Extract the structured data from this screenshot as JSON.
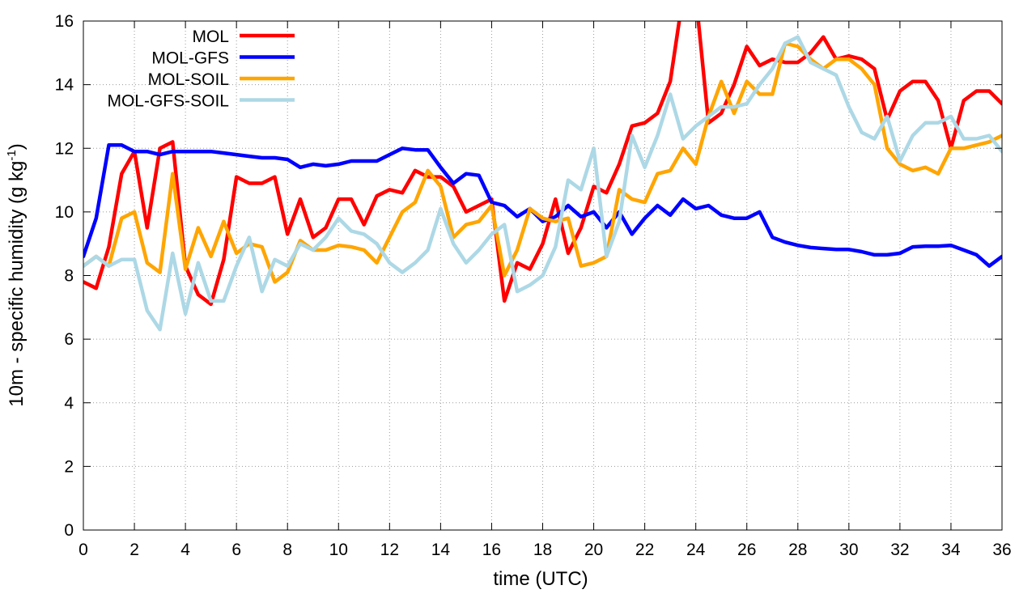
{
  "chart_data": {
    "type": "line",
    "xlabel": "time (UTC)",
    "ylabel_main": "10m - specific humidity (g kg",
    "ylabel_sup": "-1",
    "ylabel_tail": ")",
    "xlim": [
      0,
      36
    ],
    "ylim": [
      0,
      16
    ],
    "xticks": [
      "0",
      "2",
      "4",
      "6",
      "8",
      "10",
      "12",
      "14",
      "16",
      "18",
      "20",
      "22",
      "24",
      "26",
      "28",
      "30",
      "32",
      "34",
      "36"
    ],
    "yticks": [
      "0",
      "2",
      "4",
      "6",
      "8",
      "10",
      "12",
      "14",
      "16"
    ],
    "grid": true,
    "legend_position": "top-left",
    "x": [
      0,
      0.5,
      1,
      1.5,
      2,
      2.5,
      3,
      3.5,
      4,
      4.5,
      5,
      5.5,
      6,
      6.5,
      7,
      7.5,
      8,
      8.5,
      9,
      9.5,
      10,
      10.5,
      11,
      11.5,
      12,
      12.5,
      13,
      13.5,
      14,
      14.5,
      15,
      15.5,
      16,
      16.5,
      17,
      17.5,
      18,
      18.5,
      19,
      19.5,
      20,
      20.5,
      21,
      21.5,
      22,
      22.5,
      23,
      23.5,
      24,
      24.5,
      25,
      25.5,
      26,
      26.5,
      27,
      27.5,
      28,
      28.5,
      29,
      29.5,
      30,
      30.5,
      31,
      31.5,
      32,
      32.5,
      33,
      33.5,
      34,
      34.5,
      35,
      35.5,
      36
    ],
    "series": [
      {
        "name": "MOL",
        "color": "#ff0000",
        "values": [
          7.8,
          7.6,
          8.9,
          11.2,
          11.9,
          9.5,
          12.0,
          12.2,
          8.3,
          7.4,
          7.1,
          8.5,
          11.1,
          10.9,
          10.9,
          11.1,
          9.3,
          10.4,
          9.2,
          9.5,
          10.4,
          10.4,
          9.6,
          10.5,
          10.7,
          10.6,
          11.3,
          11.1,
          11.1,
          10.8,
          10.0,
          10.2,
          10.4,
          7.2,
          8.4,
          8.2,
          9.0,
          10.4,
          8.7,
          9.5,
          10.8,
          10.6,
          11.5,
          12.7,
          12.8,
          13.1,
          14.1,
          16.8,
          16.8,
          12.8,
          13.1,
          14.0,
          15.2,
          14.6,
          14.8,
          14.7,
          14.7,
          15.0,
          15.5,
          14.8,
          14.9,
          14.8,
          14.5,
          12.9,
          13.8,
          14.1,
          14.1,
          13.5,
          12.0,
          13.5,
          13.8,
          13.8,
          13.4
        ]
      },
      {
        "name": "MOL-GFS",
        "color": "#0000ff",
        "values": [
          8.6,
          9.8,
          12.1,
          12.1,
          11.9,
          11.9,
          11.8,
          11.9,
          11.9,
          11.9,
          11.9,
          11.85,
          11.8,
          11.75,
          11.7,
          11.7,
          11.65,
          11.4,
          11.5,
          11.45,
          11.5,
          11.6,
          11.6,
          11.6,
          11.8,
          12.0,
          11.95,
          11.95,
          11.4,
          10.9,
          11.2,
          11.15,
          10.3,
          10.2,
          9.85,
          10.1,
          9.7,
          9.85,
          10.2,
          9.85,
          10.0,
          9.5,
          10.0,
          9.3,
          9.8,
          10.2,
          9.9,
          10.4,
          10.1,
          10.2,
          9.9,
          9.8,
          9.8,
          10.0,
          9.2,
          9.05,
          8.95,
          8.88,
          8.85,
          8.82,
          8.82,
          8.75,
          8.65,
          8.65,
          8.7,
          8.9,
          8.92,
          8.92,
          8.95,
          8.8,
          8.65,
          8.3,
          8.6
        ]
      },
      {
        "name": "MOL-SOIL",
        "color": "#ffa500",
        "values": [
          8.3,
          8.6,
          8.3,
          9.8,
          10.0,
          8.4,
          8.1,
          11.2,
          8.2,
          9.5,
          8.6,
          9.7,
          8.7,
          9.0,
          8.9,
          7.8,
          8.1,
          9.1,
          8.8,
          8.8,
          8.95,
          8.9,
          8.8,
          8.4,
          9.2,
          10.0,
          10.3,
          11.3,
          10.8,
          9.2,
          9.6,
          9.7,
          10.2,
          8.0,
          8.8,
          10.1,
          9.8,
          9.7,
          9.8,
          8.3,
          8.4,
          8.6,
          10.7,
          10.4,
          10.3,
          11.2,
          11.3,
          12.0,
          11.5,
          13.0,
          14.1,
          13.1,
          14.1,
          13.7,
          13.7,
          15.3,
          15.2,
          14.8,
          14.5,
          14.8,
          14.8,
          14.5,
          14.0,
          12.0,
          11.5,
          11.3,
          11.4,
          11.2,
          12.0,
          12.0,
          12.1,
          12.2,
          12.4
        ]
      },
      {
        "name": "MOL-GFS-SOIL",
        "color": "#add8e6",
        "values": [
          8.3,
          8.6,
          8.3,
          8.5,
          8.5,
          6.9,
          6.3,
          8.7,
          6.8,
          8.4,
          7.2,
          7.2,
          8.3,
          9.2,
          7.5,
          8.5,
          8.3,
          9.0,
          8.8,
          9.2,
          9.8,
          9.4,
          9.3,
          9.0,
          8.4,
          8.1,
          8.4,
          8.8,
          10.1,
          9.0,
          8.4,
          8.8,
          9.3,
          9.6,
          7.5,
          7.7,
          8.0,
          8.9,
          11.0,
          10.7,
          12.0,
          8.6,
          9.7,
          12.4,
          11.4,
          12.4,
          13.7,
          12.3,
          12.7,
          13.0,
          13.3,
          13.3,
          13.4,
          14.0,
          14.5,
          15.3,
          15.5,
          14.7,
          14.5,
          14.3,
          13.3,
          12.5,
          12.3,
          13.0,
          11.6,
          12.4,
          12.8,
          12.8,
          13.0,
          12.3,
          12.3,
          12.4,
          11.9
        ]
      }
    ]
  }
}
